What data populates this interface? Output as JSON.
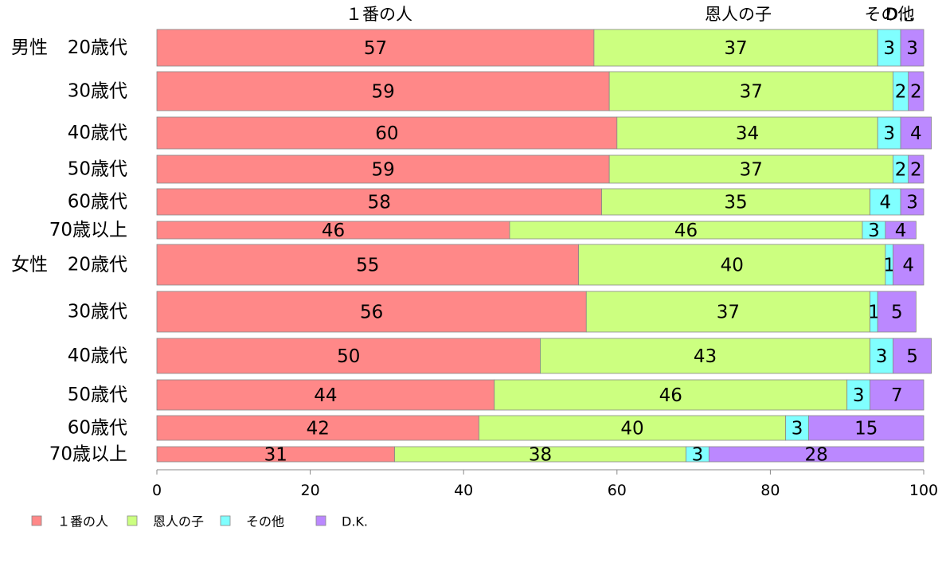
{
  "chart_data": {
    "type": "bar",
    "orientation": "horizontal",
    "stacked": true,
    "series": [
      {
        "name": "１番の人",
        "color": "#ff8888"
      },
      {
        "name": "恩人の子",
        "color": "#ccff80"
      },
      {
        "name": "その他",
        "color": "#80ffff"
      },
      {
        "name": "D.K.",
        "color": "#bb88ff"
      }
    ],
    "top_labels": [
      "１番の人",
      "恩人の子",
      "その他",
      "D.K."
    ],
    "rows": [
      {
        "group": "男性",
        "label": "20歳代",
        "values": [
          57,
          37,
          3,
          3
        ]
      },
      {
        "group": "",
        "label": "30歳代",
        "values": [
          59,
          37,
          2,
          2
        ]
      },
      {
        "group": "",
        "label": "40歳代",
        "values": [
          60,
          34,
          3,
          4
        ]
      },
      {
        "group": "",
        "label": "50歳代",
        "values": [
          59,
          37,
          2,
          2
        ]
      },
      {
        "group": "",
        "label": "60歳代",
        "values": [
          58,
          35,
          4,
          3
        ]
      },
      {
        "group": "",
        "label": "70歳以上",
        "values": [
          46,
          46,
          3,
          4
        ]
      },
      {
        "group": "女性",
        "label": "20歳代",
        "values": [
          55,
          40,
          1,
          4
        ]
      },
      {
        "group": "",
        "label": "30歳代",
        "values": [
          56,
          37,
          1,
          5
        ]
      },
      {
        "group": "",
        "label": "40歳代",
        "values": [
          50,
          43,
          3,
          5
        ]
      },
      {
        "group": "",
        "label": "50歳代",
        "values": [
          44,
          46,
          3,
          7
        ]
      },
      {
        "group": "",
        "label": "60歳代",
        "values": [
          42,
          40,
          3,
          15
        ]
      },
      {
        "group": "",
        "label": "70歳以上",
        "values": [
          31,
          38,
          3,
          28
        ]
      }
    ],
    "xlim": [
      0,
      100
    ],
    "xticks": [
      0,
      20,
      40,
      60,
      80,
      100
    ],
    "legend_position": "bottom-left"
  }
}
